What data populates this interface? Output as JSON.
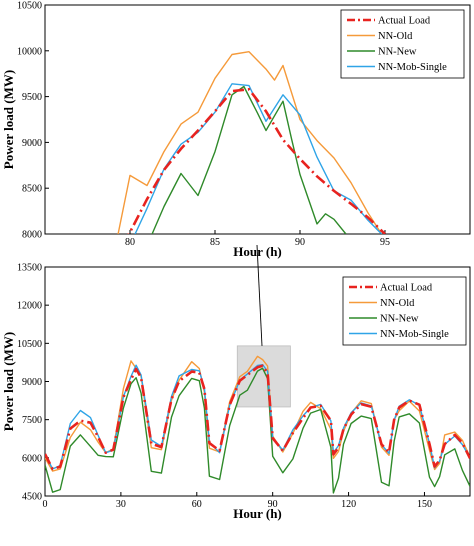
{
  "chart_data": [
    {
      "type": "line",
      "xlabel": "Hour (h)",
      "ylabel": "Power load (MW)",
      "xlim": [
        75,
        100
      ],
      "ylim": [
        8000,
        10500
      ],
      "xticks": [
        80,
        85,
        90,
        95
      ],
      "yticks": [
        8000,
        8500,
        9000,
        9500,
        10000,
        10500
      ],
      "legend": "top-right",
      "series": [
        {
          "name": "Actual Load",
          "color": "#e8231f",
          "dash": "dashdot",
          "x": [
            79,
            80,
            81,
            82,
            83,
            84,
            85,
            86,
            87,
            88,
            89,
            90,
            91,
            92,
            93,
            94,
            95
          ],
          "y": [
            7700,
            8020,
            8380,
            8700,
            8930,
            9130,
            9340,
            9560,
            9580,
            9340,
            9030,
            8820,
            8630,
            8470,
            8330,
            8180,
            8000
          ]
        },
        {
          "name": "NN-Old",
          "color": "#f59a3a",
          "dash": "solid",
          "x": [
            79.3,
            80,
            81,
            82,
            83,
            84,
            85,
            86,
            87,
            88,
            88.5,
            89,
            90,
            91,
            92,
            93,
            94,
            94.8
          ],
          "y": [
            8000,
            8640,
            8530,
            8900,
            9200,
            9330,
            9700,
            9960,
            9990,
            9800,
            9680,
            9840,
            9250,
            9020,
            8830,
            8560,
            8230,
            8000
          ]
        },
        {
          "name": "NN-New",
          "color": "#2f8a2a",
          "dash": "solid",
          "x": [
            81.3,
            82,
            83,
            84,
            85,
            86,
            86.7,
            87.5,
            88,
            89,
            89.5,
            90,
            91,
            91.5,
            92,
            92.7
          ],
          "y": [
            8000,
            8300,
            8660,
            8420,
            8900,
            9520,
            9610,
            9320,
            9130,
            9450,
            9040,
            8650,
            8110,
            8220,
            8160,
            8000
          ]
        },
        {
          "name": "NN-Mob-Single",
          "color": "#2fa4e7",
          "dash": "solid",
          "x": [
            80.3,
            81,
            82,
            83,
            84,
            85,
            86,
            87,
            88,
            89,
            90,
            91,
            92,
            93,
            94,
            94.8
          ],
          "y": [
            8000,
            8280,
            8710,
            8980,
            9110,
            9330,
            9640,
            9620,
            9230,
            9520,
            9300,
            8840,
            8470,
            8370,
            8150,
            8000
          ]
        }
      ]
    },
    {
      "type": "line",
      "xlabel": "Hour (h)",
      "ylabel": "Power load (MW)",
      "xlim": [
        0,
        168
      ],
      "ylim": [
        4500,
        13500
      ],
      "xticks": [
        0,
        30,
        60,
        90,
        120,
        150
      ],
      "yticks": [
        4500,
        6000,
        7500,
        9000,
        10500,
        12000,
        13500
      ],
      "legend": "top-right",
      "series": [
        {
          "name": "Actual Load",
          "color": "#e8231f",
          "dash": "dashdot",
          "x": [
            0,
            3,
            6,
            10,
            14,
            18,
            21,
            24,
            27,
            31,
            34,
            36,
            38,
            42,
            46,
            50,
            53,
            58,
            61,
            63,
            65,
            69,
            73,
            77,
            80,
            84,
            86,
            88,
            90,
            94,
            98,
            102,
            105,
            109,
            113,
            114,
            116,
            118,
            121,
            125,
            129,
            133,
            136,
            138,
            140,
            144,
            148,
            152,
            154,
            156,
            158,
            162,
            165,
            168
          ],
          "y": [
            6150,
            5560,
            5650,
            7150,
            7460,
            7380,
            6820,
            6200,
            6320,
            8380,
            9080,
            9490,
            9150,
            6560,
            6420,
            8300,
            9010,
            9390,
            9350,
            8700,
            6580,
            6280,
            8080,
            9030,
            9260,
            9560,
            9620,
            9330,
            6770,
            6280,
            6980,
            7560,
            7980,
            8040,
            7460,
            6130,
            6400,
            7130,
            7700,
            8110,
            8010,
            6530,
            6210,
            7490,
            7980,
            8250,
            8090,
            6540,
            5660,
            5900,
            6540,
            6900,
            6580,
            5980
          ]
        },
        {
          "name": "NN-Old",
          "color": "#f59a3a",
          "dash": "solid",
          "x": [
            0,
            3,
            6,
            10,
            14,
            18,
            21,
            24,
            27,
            31,
            34,
            36,
            38,
            42,
            46,
            50,
            53,
            58,
            61,
            63,
            65,
            69,
            73,
            77,
            80,
            84,
            86,
            88,
            90,
            94,
            98,
            102,
            105,
            109,
            113,
            114,
            116,
            118,
            121,
            125,
            129,
            133,
            136,
            138,
            140,
            144,
            148,
            152,
            154,
            156,
            158,
            162,
            165,
            168
          ],
          "y": [
            6000,
            5480,
            5560,
            6800,
            7400,
            7100,
            6620,
            6200,
            6350,
            8720,
            9810,
            9520,
            9200,
            6400,
            6320,
            8260,
            9050,
            9780,
            9510,
            8580,
            6380,
            6230,
            8210,
            9190,
            9400,
            9990,
            9860,
            9610,
            6860,
            6230,
            6960,
            7830,
            8180,
            7930,
            7120,
            5980,
            6250,
            7040,
            7750,
            8240,
            8130,
            6420,
            6100,
            7490,
            7850,
            8230,
            7840,
            6300,
            5540,
            5780,
            6900,
            7010,
            6690,
            6030
          ]
        },
        {
          "name": "NN-New",
          "color": "#2f8a2a",
          "dash": "solid",
          "x": [
            0,
            3,
            6,
            10,
            14,
            18,
            21,
            24,
            27,
            31,
            34,
            36,
            38,
            42,
            46,
            50,
            53,
            58,
            61,
            63,
            65,
            69,
            73,
            77,
            80,
            84,
            86,
            88,
            90,
            94,
            98,
            102,
            105,
            109,
            113,
            114,
            116,
            118,
            121,
            125,
            129,
            133,
            136,
            138,
            140,
            144,
            148,
            152,
            154,
            156,
            158,
            162,
            165,
            168
          ],
          "y": [
            5720,
            4650,
            4750,
            6460,
            6900,
            6450,
            6100,
            6050,
            6040,
            7960,
            8910,
            9150,
            8540,
            5470,
            5400,
            7600,
            8440,
            9120,
            9030,
            7960,
            5280,
            5150,
            7270,
            8460,
            8660,
            9410,
            9520,
            9110,
            6060,
            5410,
            5960,
            7160,
            7760,
            7900,
            6410,
            4620,
            5200,
            6540,
            7350,
            7640,
            7540,
            5040,
            4900,
            6640,
            7610,
            7730,
            7370,
            5240,
            4870,
            5260,
            6120,
            6350,
            5510,
            4880
          ]
        },
        {
          "name": "NN-Mob-Single",
          "color": "#2fa4e7",
          "dash": "solid",
          "x": [
            0,
            3,
            6,
            10,
            14,
            18,
            21,
            24,
            27,
            31,
            34,
            36,
            38,
            42,
            46,
            50,
            53,
            58,
            61,
            63,
            65,
            69,
            73,
            77,
            80,
            84,
            86,
            88,
            90,
            94,
            98,
            102,
            105,
            109,
            113,
            114,
            116,
            118,
            121,
            125,
            129,
            133,
            136,
            138,
            140,
            144,
            148,
            152,
            154,
            156,
            158,
            162,
            165,
            168
          ],
          "y": [
            6150,
            5560,
            5700,
            7350,
            7860,
            7580,
            6880,
            6200,
            6300,
            8400,
            9200,
            9640,
            9250,
            6700,
            6450,
            8410,
            9220,
            9470,
            9420,
            8750,
            6620,
            6200,
            8060,
            9050,
            9300,
            9630,
            9660,
            9400,
            6800,
            6300,
            7100,
            7650,
            7980,
            8100,
            7450,
            6200,
            6480,
            7170,
            7770,
            8160,
            8040,
            6520,
            6180,
            7480,
            8030,
            8280,
            8070,
            6560,
            5610,
            5870,
            6530,
            6860,
            6520,
            6000
          ]
        }
      ]
    }
  ]
}
